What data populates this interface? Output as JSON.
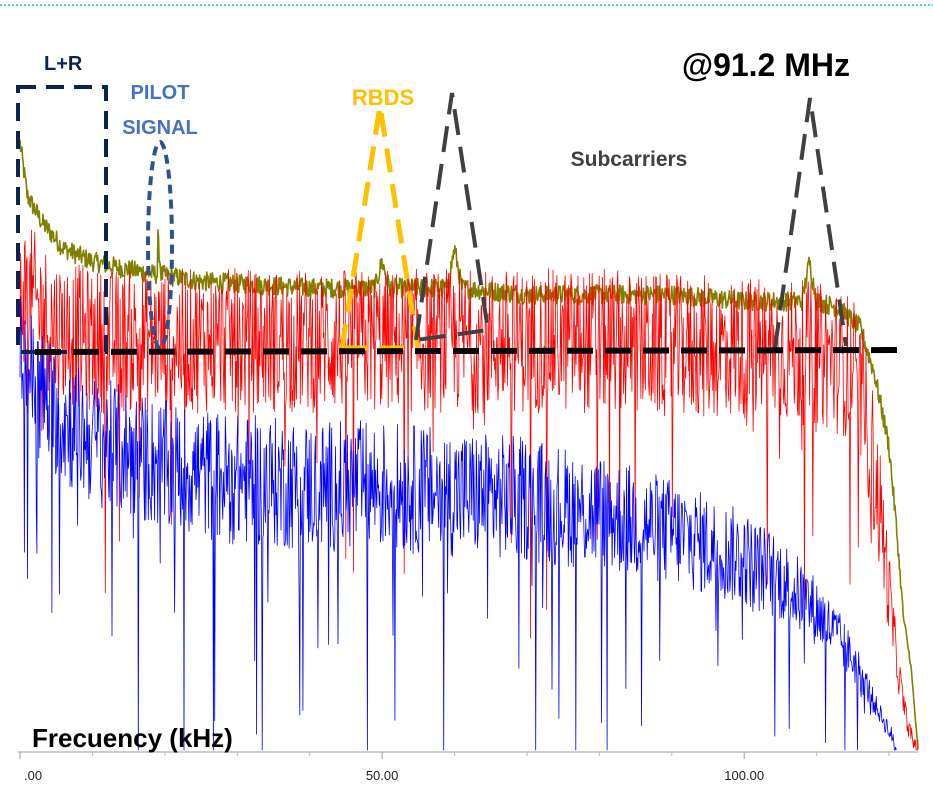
{
  "chart_data": {
    "type": "line",
    "title": "@91.2 MHz",
    "xlabel": "Frecuency (kHz)",
    "ylabel": "",
    "xlim": [
      0,
      124
    ],
    "ylim": [
      0,
      100
    ],
    "grid": false,
    "x_ticks": [
      {
        "value": 0,
        "label": ".00"
      },
      {
        "value": 50,
        "label": "50.00"
      },
      {
        "value": 100,
        "label": "100.00"
      }
    ],
    "series": [
      {
        "color": "#808000",
        "points": [
          [
            0,
            92
          ],
          [
            1,
            84
          ],
          [
            3,
            80
          ],
          [
            6,
            76
          ],
          [
            10,
            74
          ],
          [
            14,
            73
          ],
          [
            19,
            72
          ],
          [
            19,
            78
          ],
          [
            19.5,
            72
          ],
          [
            25,
            71
          ],
          [
            40,
            70
          ],
          [
            49,
            70
          ],
          [
            50,
            74
          ],
          [
            51,
            70
          ],
          [
            57,
            70
          ],
          [
            59,
            70
          ],
          [
            60,
            76
          ],
          [
            61,
            70
          ],
          [
            70,
            69
          ],
          [
            80,
            69
          ],
          [
            90,
            69
          ],
          [
            100,
            68
          ],
          [
            108,
            68
          ],
          [
            109,
            74
          ],
          [
            110,
            68
          ],
          [
            113,
            67
          ],
          [
            116,
            64
          ],
          [
            118,
            57
          ],
          [
            120,
            46
          ],
          [
            121,
            34
          ],
          [
            122,
            20
          ],
          [
            123,
            13
          ],
          [
            124,
            0
          ]
        ]
      },
      {
        "color": "#ff0000",
        "points": [
          [
            0,
            70
          ],
          [
            5,
            64
          ],
          [
            10,
            62
          ],
          [
            20,
            62
          ],
          [
            30,
            62
          ],
          [
            40,
            62
          ],
          [
            50,
            62
          ],
          [
            60,
            62
          ],
          [
            70,
            62
          ],
          [
            80,
            62
          ],
          [
            90,
            61
          ],
          [
            100,
            61
          ],
          [
            110,
            60
          ],
          [
            115,
            58
          ],
          [
            117,
            50
          ],
          [
            118,
            42
          ],
          [
            119,
            34
          ],
          [
            120,
            24
          ],
          [
            121,
            14
          ],
          [
            122,
            7
          ],
          [
            123,
            2
          ],
          [
            124,
            0
          ]
        ]
      },
      {
        "color": "#0000ff",
        "points": [
          [
            0,
            60
          ],
          [
            3,
            54
          ],
          [
            6,
            50
          ],
          [
            10,
            47
          ],
          [
            15,
            45
          ],
          [
            20,
            43
          ],
          [
            30,
            41
          ],
          [
            40,
            40
          ],
          [
            50,
            40
          ],
          [
            60,
            39
          ],
          [
            70,
            38
          ],
          [
            80,
            36
          ],
          [
            90,
            33
          ],
          [
            100,
            29
          ],
          [
            105,
            26
          ],
          [
            110,
            21
          ],
          [
            113,
            17
          ],
          [
            116,
            12
          ],
          [
            118,
            7
          ],
          [
            120,
            3
          ],
          [
            121,
            0
          ]
        ]
      }
    ],
    "annotations": [
      {
        "text": "L+R",
        "color": "#0d2350"
      },
      {
        "text": "PILOT",
        "color": "#4472c4"
      },
      {
        "text": "SIGNAL",
        "color": "#4472c4"
      },
      {
        "text": "RBDS",
        "color": "#ffc000"
      },
      {
        "text": "Subcarriers",
        "color": "#404040"
      }
    ]
  }
}
